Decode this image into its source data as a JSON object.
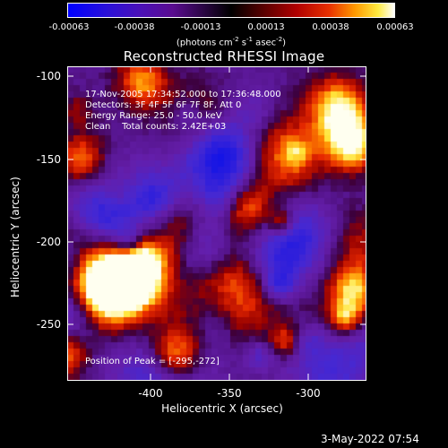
{
  "colorbar": {
    "ticks": [
      "-0.00063",
      "-0.00038",
      "-0.00013",
      "0.00013",
      "0.00038",
      "0.00063"
    ],
    "units_text": "(photons cm",
    "units_exp1": "-2",
    "units_mid": " s",
    "units_exp2": "-1",
    "units_end": " asec",
    "units_exp3": "-2",
    "units_close": ")"
  },
  "title": "Reconstructed RHESSI Image",
  "info": {
    "line1": "17-Nov-2005 17:34:52.000 to 17:36:48.000",
    "line2": "Detectors: 3F 4F 5F 6F 7F 8F, Att 0",
    "line3": "Energy Range: 25.0 - 50.0 keV",
    "line4": "Clean    Total counts: 2.42E+03"
  },
  "peak": "Position of Peak = [-295,-272]",
  "axes": {
    "xlabel": "Heliocentric X (arcsec)",
    "ylabel": "Heliocentric Y (arcsec)",
    "xticks": [
      "-400",
      "-350",
      "-300"
    ],
    "yticks": [
      "-100",
      "-150",
      "-200",
      "-250"
    ],
    "xrange_arcsec": [
      -445,
      -253
    ],
    "yrange_arcsec": [
      -282,
      -94
    ],
    "colormap": "RHESSI blue-purple-red-yellow-white"
  },
  "timestamp": "3-May-2022 07:54"
}
